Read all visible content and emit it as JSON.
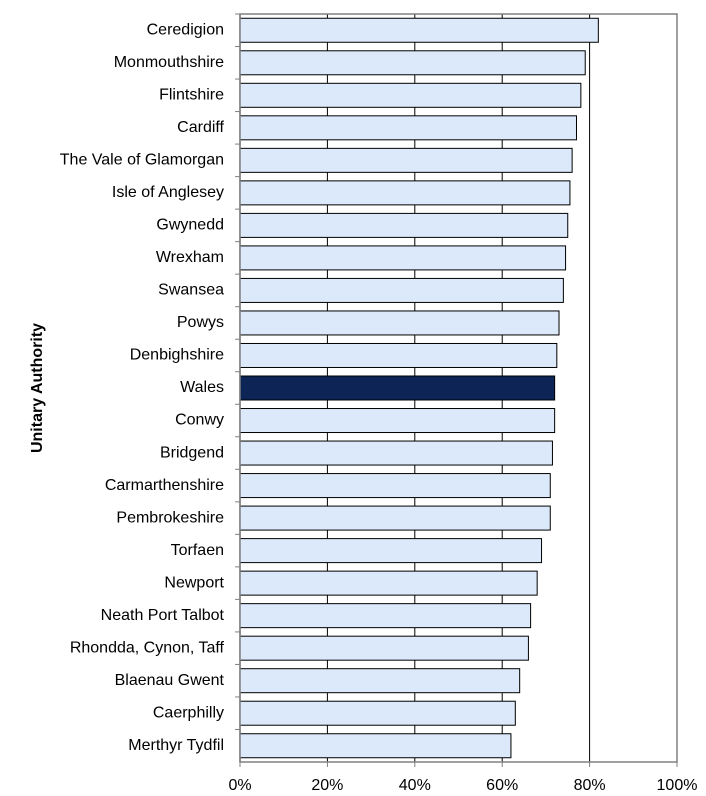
{
  "chart_data": {
    "type": "hbar",
    "y_label": "Unitary Authority",
    "categories": [
      "Ceredigion",
      "Monmouthshire",
      "Flintshire",
      "Cardiff",
      "The Vale of Glamorgan",
      "Isle of Anglesey",
      "Gwynedd",
      "Wrexham",
      "Swansea",
      "Powys",
      "Denbighshire",
      "Wales",
      "Conwy",
      "Bridgend",
      "Carmarthenshire",
      "Pembrokeshire",
      "Torfaen",
      "Newport",
      "Neath Port Talbot",
      "Rhondda, Cynon, Taff",
      "Blaenau Gwent",
      "Caerphilly",
      "Merthyr Tydfil"
    ],
    "values": [
      82,
      79,
      78,
      77,
      76,
      75.5,
      75,
      74.5,
      74,
      73,
      72.5,
      72,
      72,
      71.5,
      71,
      71,
      69,
      68,
      66.5,
      66,
      64,
      63,
      62
    ],
    "colors": [
      "#dbe9fb",
      "#dbe9fb",
      "#dbe9fb",
      "#dbe9fb",
      "#dbe9fb",
      "#dbe9fb",
      "#dbe9fb",
      "#dbe9fb",
      "#dbe9fb",
      "#dbe9fb",
      "#dbe9fb",
      "#0d2456",
      "#dbe9fb",
      "#dbe9fb",
      "#dbe9fb",
      "#dbe9fb",
      "#dbe9fb",
      "#dbe9fb",
      "#dbe9fb",
      "#dbe9fb",
      "#dbe9fb",
      "#dbe9fb",
      "#dbe9fb"
    ],
    "xlim": [
      0,
      100
    ],
    "xticks": [
      {
        "value": 0,
        "label": "0%"
      },
      {
        "value": 20,
        "label": "20%"
      },
      {
        "value": 40,
        "label": "40%"
      },
      {
        "value": 60,
        "label": "60%"
      },
      {
        "value": 80,
        "label": "80%"
      },
      {
        "value": 100,
        "label": "100%"
      }
    ],
    "grid": true
  }
}
